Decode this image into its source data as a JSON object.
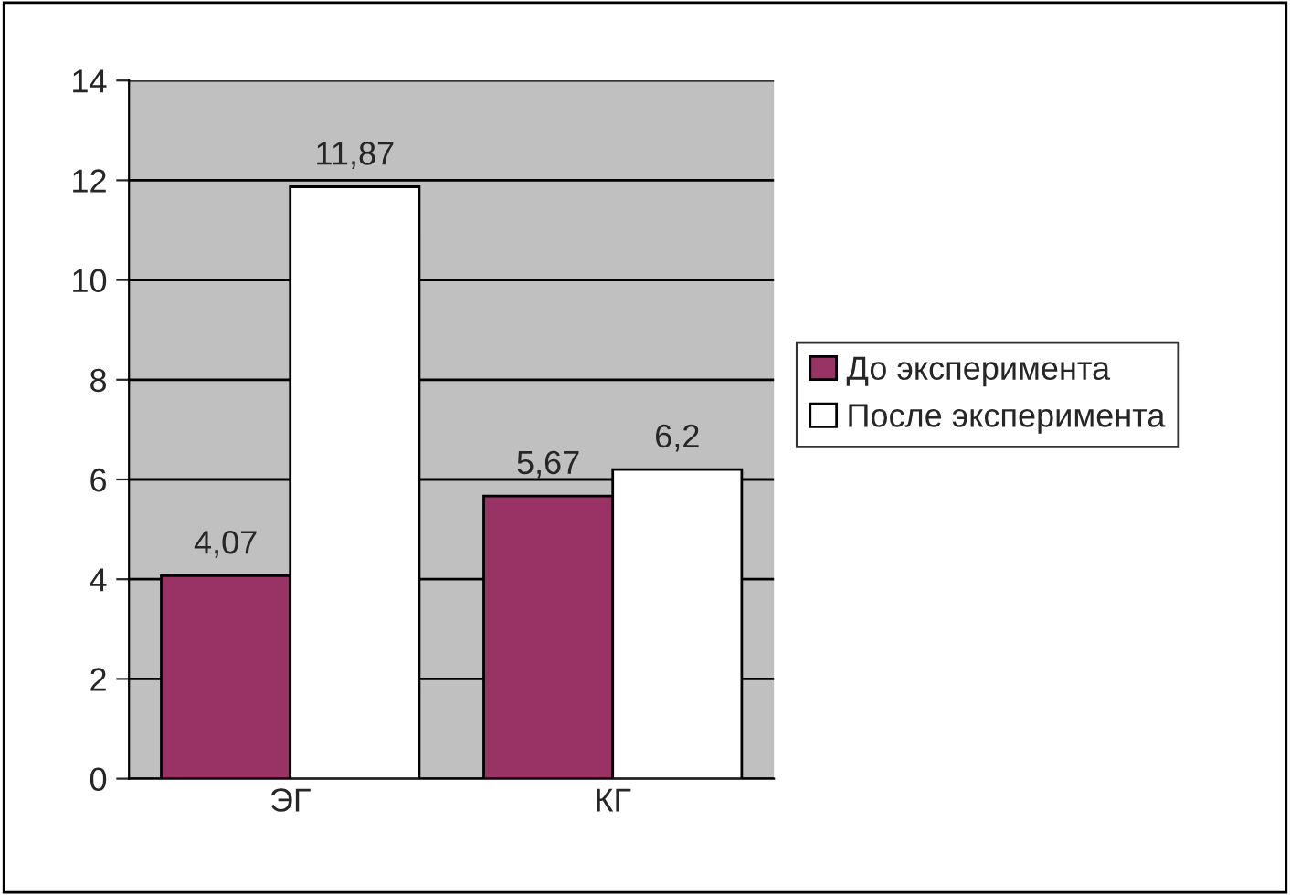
{
  "chart_data": {
    "type": "bar",
    "categories": [
      "ЭГ",
      "КГ"
    ],
    "series": [
      {
        "name": "До эксперимента",
        "color": "#993366",
        "values": [
          4.07,
          5.67
        ],
        "value_labels": [
          "4,07",
          "5,67"
        ]
      },
      {
        "name": "После эксперимента",
        "color": "#ffffff",
        "values": [
          11.87,
          6.2
        ],
        "value_labels": [
          "11,87",
          "6,2"
        ]
      }
    ],
    "ylim": [
      0,
      14
    ],
    "yticks": [
      0,
      2,
      4,
      6,
      8,
      10,
      12,
      14
    ],
    "grid": "y",
    "legend": "right"
  }
}
